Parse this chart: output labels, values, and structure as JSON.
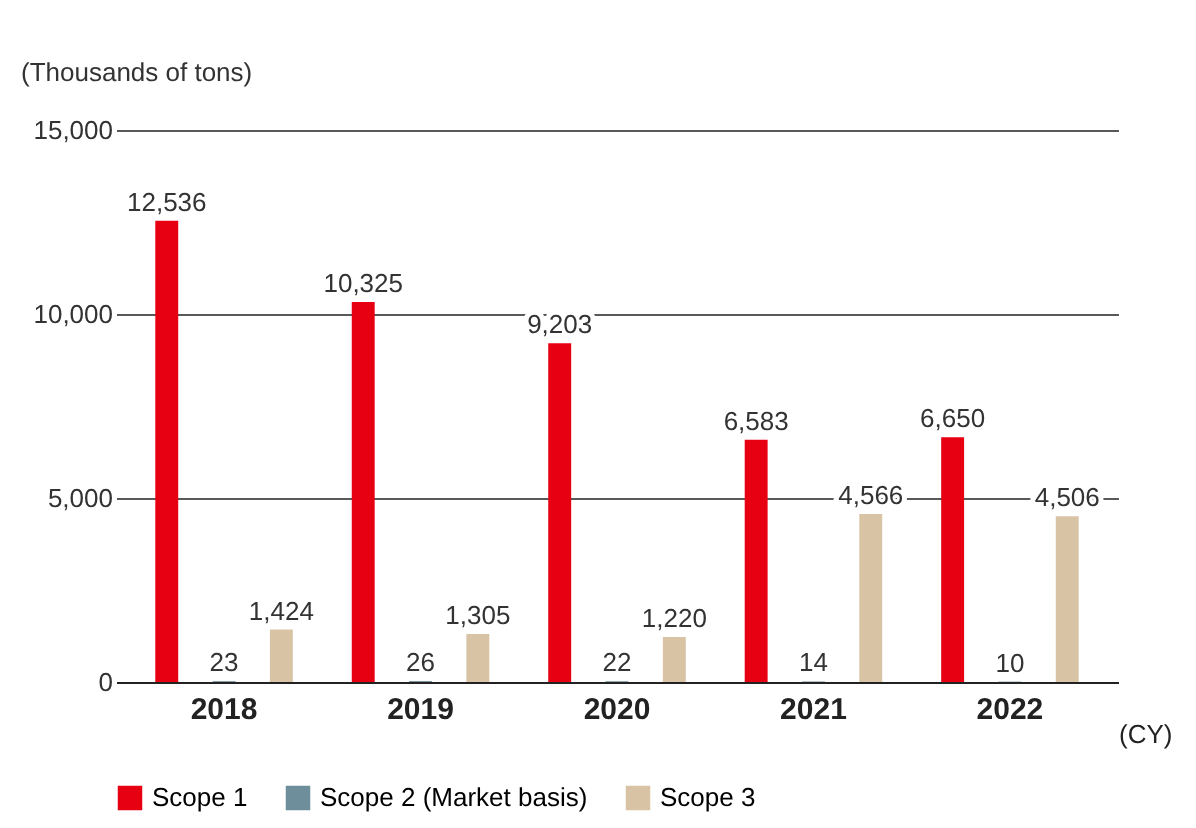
{
  "chart_data": {
    "type": "bar",
    "ylabel": "(Thousands of tons)",
    "xlabel": "(CY)",
    "categories": [
      "2018",
      "2019",
      "2020",
      "2021",
      "2022"
    ],
    "series": [
      {
        "name": "Scope 1",
        "color": "#e60012",
        "values": [
          12536,
          10325,
          9203,
          6583,
          6650
        ],
        "value_labels": [
          "12,536",
          "10,325",
          "9,203",
          "6,583",
          "6,650"
        ]
      },
      {
        "name": "Scope 2 (Market basis)",
        "color": "#6f8e9c",
        "values": [
          23,
          26,
          22,
          14,
          10
        ],
        "value_labels": [
          "23",
          "26",
          "22",
          "14",
          "10"
        ]
      },
      {
        "name": "Scope 3",
        "color": "#d8c3a5",
        "values": [
          1424,
          1305,
          1220,
          4566,
          4506
        ],
        "value_labels": [
          "1,424",
          "1,305",
          "1,220",
          "4,566",
          "4,506"
        ]
      }
    ],
    "ylim": [
      0,
      15000
    ],
    "yticks": [
      0,
      {
        "value": 5000,
        "label": "5,000"
      },
      {
        "value": 10000,
        "label": "10,000"
      },
      {
        "value": 15000,
        "label": "15,000"
      }
    ],
    "grid": "y",
    "legend": "bottom"
  }
}
